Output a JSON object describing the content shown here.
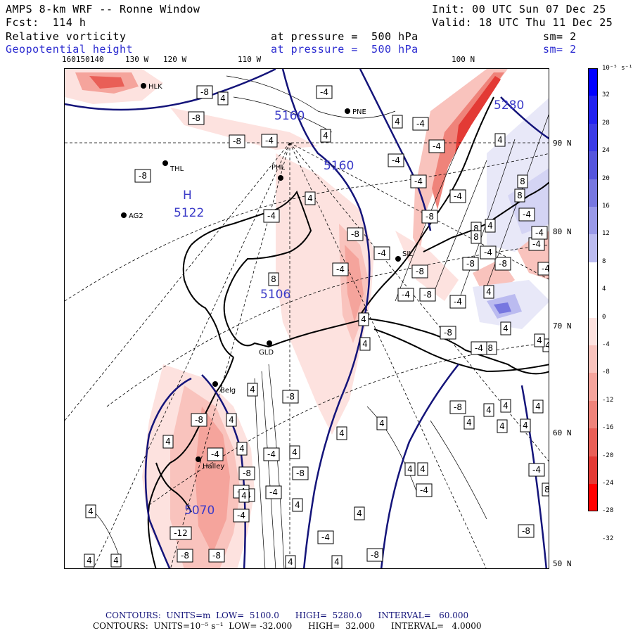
{
  "header": {
    "title": "AMPS 8-km WRF -- Ronne Window",
    "init": "Init: 00 UTC Sun 07 Dec 25",
    "fcst": "Fcst:  114 h",
    "valid": "Valid: 18 UTC Thu 11 Dec 25",
    "field1": "Relative vorticity",
    "field2": "Geopotential height",
    "pressure1": "at pressure =  500 hPa",
    "pressure2": "at pressure =  500 hPa",
    "sm1": "sm= 2",
    "sm2": "sm= 2"
  },
  "lon_labels": [
    "160150140",
    "130 W",
    "120 W",
    "110 W",
    "100 N"
  ],
  "lat_labels": [
    "90 N",
    "80 N",
    "70 N",
    "60 N",
    "50 N"
  ],
  "colorbar": {
    "unit": "10⁻⁵ s⁻¹",
    "ticks": [
      "32",
      "28",
      "24",
      "20",
      "16",
      "12",
      "8",
      "4",
      "0",
      "-4",
      "-8",
      "-12",
      "-16",
      "-20",
      "-24",
      "-28",
      "-32"
    ],
    "colors": [
      "#0000ff",
      "#2222f0",
      "#3b3be6",
      "#5555dd",
      "#7777e0",
      "#9999e8",
      "#bbbbf0",
      "#ffffff",
      "#ffffff",
      "#fde2df",
      "#f9c3bd",
      "#f5a49c",
      "#ef837a",
      "#e95f57",
      "#e33a35",
      "#ff0000"
    ],
    "zero_color": "#ffffff"
  },
  "stations": [
    {
      "name": "HLK"
    },
    {
      "name": "PNE"
    },
    {
      "name": "THL"
    },
    {
      "name": "PHL"
    },
    {
      "name": "AG2"
    },
    {
      "name": "SIL"
    },
    {
      "name": "GLD"
    },
    {
      "name": "Belg"
    },
    {
      "name": "Halley"
    }
  ],
  "height_labels": [
    "5160",
    "5160",
    "5280",
    "5122",
    "5106",
    "5070"
  ],
  "high_marker": "H",
  "vort_labels": [
    "-8",
    "4",
    "-4",
    "-8",
    "-4",
    "4",
    "-4",
    "4",
    "-8",
    "-4",
    "4",
    "-4",
    "8",
    "-4",
    "-4",
    "-8",
    "4",
    "-4",
    "-8",
    "4",
    "-8",
    "8",
    "-4",
    "-4",
    "-8",
    "-8",
    "8",
    "-4",
    "-4",
    "-4",
    "-8",
    "8",
    "4",
    "-4",
    "4",
    "-8",
    "8",
    "-8",
    "8",
    "4",
    "-4",
    "-4",
    "-4",
    "4",
    "-8",
    "4",
    "-8",
    "4",
    "4",
    "-4",
    "4",
    "-4",
    "-8",
    "-4",
    "4",
    "-8",
    "-4",
    "4",
    "4",
    "4",
    "4",
    "-4",
    "4",
    "4",
    "4",
    "4",
    "-4",
    "8",
    "-8",
    "4",
    "-4",
    "-8",
    "-4",
    "-4",
    "4",
    "4",
    "4",
    "-8",
    "-12",
    "4",
    "4",
    "4",
    "-8",
    "-8",
    "4",
    "4",
    "-8",
    "-4",
    "4",
    "4",
    "4",
    "4"
  ],
  "footer": {
    "line1": "CONTOURS:  UNITS=m  LOW=  5100.0      HIGH=  5280.0      INTERVAL=   60.000",
    "line2": "CONTOURS:  UNITS=10⁻⁵ s⁻¹  LOW= -32.000      HIGH=  32.000      INTERVAL=   4.0000"
  }
}
